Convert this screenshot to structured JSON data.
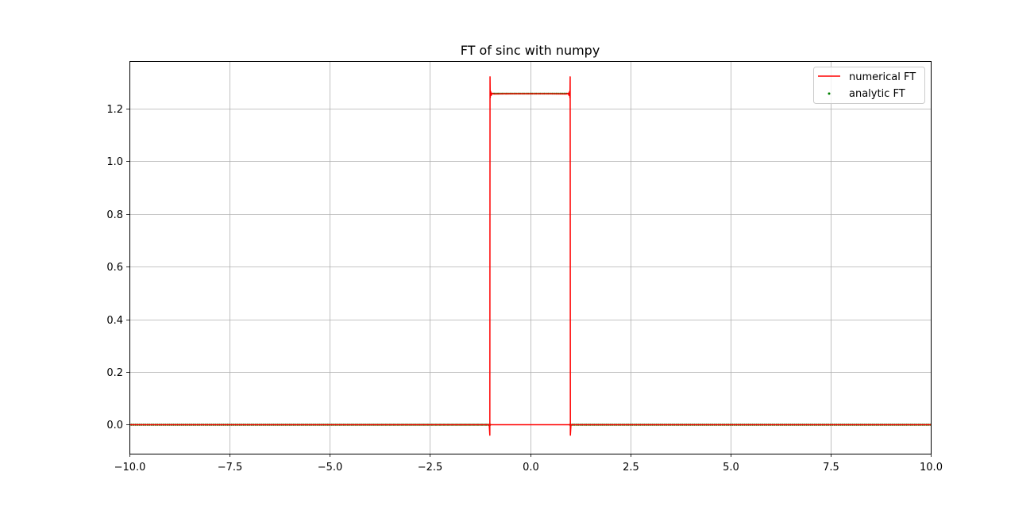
{
  "chart_data": {
    "type": "line",
    "title": "FT of sinc with numpy",
    "xlabel": "",
    "ylabel": "",
    "xlim": [
      -10.0,
      10.0
    ],
    "ylim": [
      -0.11,
      1.38
    ],
    "grid": true,
    "legend_position": "top-right",
    "x_ticks": [
      -10.0,
      -7.5,
      -5.0,
      -2.5,
      0.0,
      2.5,
      5.0,
      7.5,
      10.0
    ],
    "x_tick_labels": [
      "−10.0",
      "−7.5",
      "−5.0",
      "−2.5",
      "0.0",
      "2.5",
      "5.0",
      "7.5",
      "10.0"
    ],
    "y_ticks": [
      0.0,
      0.2,
      0.4,
      0.6,
      0.8,
      1.0,
      1.2
    ],
    "y_tick_labels": [
      "0.0",
      "0.2",
      "0.4",
      "0.6",
      "0.8",
      "1.0",
      "1.2"
    ],
    "series": [
      {
        "name": "numerical FT",
        "style": "line",
        "color": "#ff0000",
        "x": [
          -10.0,
          -1.02,
          -1.005,
          -1.0,
          -0.995,
          -0.985,
          -0.97,
          -0.95,
          -0.9,
          -0.5,
          0.0,
          0.5,
          0.9,
          0.95,
          0.97,
          0.985,
          0.995,
          1.0,
          1.005,
          1.02,
          10.0
        ],
        "y": [
          0.0,
          0.0,
          -0.04,
          1.32,
          1.24,
          1.265,
          1.25,
          1.258,
          1.255,
          1.256,
          1.256,
          1.256,
          1.255,
          1.258,
          1.25,
          1.265,
          1.24,
          1.32,
          -0.04,
          0.0,
          0.0
        ]
      },
      {
        "name": "analytic FT",
        "style": "points",
        "color": "#008000",
        "x_range": [
          -10.0,
          10.0
        ],
        "plateau_range": [
          -1.0,
          1.0
        ],
        "plateau_value": 1.2566,
        "outside_value": 0.0
      }
    ],
    "inner_segment": {
      "x": [
        -1.0,
        1.0
      ],
      "y": 0.0,
      "color": "#ff0000"
    }
  }
}
